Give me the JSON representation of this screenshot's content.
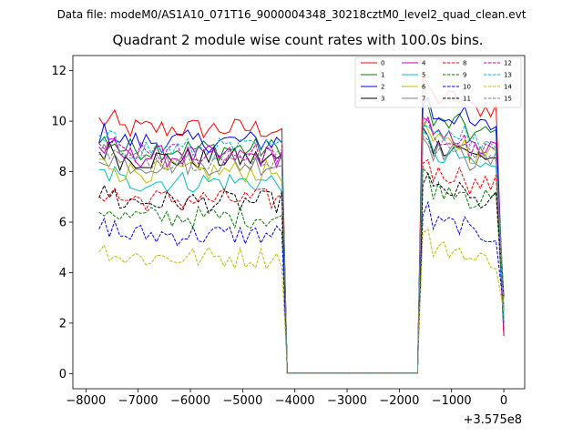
{
  "chart_data": {
    "type": "line",
    "suptitle": "Data file: modeM0/AS1A10_071T16_9000004348_30218cztM0_level2_quad_clean.evt",
    "title": "Quadrant 2 module wise count rates with 100.0s bins.",
    "offset_label": "+3.575e8",
    "xlim": [
      -8250,
      400
    ],
    "ylim": [
      -0.6,
      12.6
    ],
    "xticks": [
      -8000,
      -7000,
      -6000,
      -5000,
      -4000,
      -3000,
      -2000,
      -1000,
      0
    ],
    "xtick_labels": [
      "−8000",
      "−7000",
      "−6000",
      "−5000",
      "−4000",
      "−3000",
      "−2000",
      "−1000",
      "0"
    ],
    "yticks": [
      0,
      2,
      4,
      6,
      8,
      10,
      12
    ],
    "ytick_labels": [
      "0",
      "2",
      "4",
      "6",
      "8",
      "10",
      "12"
    ],
    "series": [
      {
        "name": "0",
        "color": "#ff0000",
        "dash": false,
        "seg1_level": 9.7,
        "seg2_level": 10.9
      },
      {
        "name": "1",
        "color": "#008000",
        "dash": false,
        "seg1_level": 8.9,
        "seg2_level": 9.9
      },
      {
        "name": "2",
        "color": "#0000ff",
        "dash": false,
        "seg1_level": 9.2,
        "seg2_level": 10.2
      },
      {
        "name": "3",
        "color": "#000000",
        "dash": false,
        "seg1_level": 8.5,
        "seg2_level": 9.0
      },
      {
        "name": "4",
        "color": "#bf00bf",
        "dash": false,
        "seg1_level": 8.6,
        "seg2_level": 9.3
      },
      {
        "name": "5",
        "color": "#00bfbf",
        "dash": false,
        "seg1_level": 7.6,
        "seg2_level": 8.6
      },
      {
        "name": "6",
        "color": "#bfbf00",
        "dash": false,
        "seg1_level": 8.0,
        "seg2_level": 9.1
      },
      {
        "name": "7",
        "color": "#808080",
        "dash": false,
        "seg1_level": 8.3,
        "seg2_level": 8.8
      },
      {
        "name": "8",
        "color": "#ff0000",
        "dash": true,
        "seg1_level": 6.9,
        "seg2_level": 7.9
      },
      {
        "name": "9",
        "color": "#008000",
        "dash": true,
        "seg1_level": 6.2,
        "seg2_level": 7.3
      },
      {
        "name": "10",
        "color": "#0000ff",
        "dash": true,
        "seg1_level": 5.5,
        "seg2_level": 5.9
      },
      {
        "name": "11",
        "color": "#000000",
        "dash": true,
        "seg1_level": 6.8,
        "seg2_level": 7.2
      },
      {
        "name": "12",
        "color": "#bf00bf",
        "dash": true,
        "seg1_level": 8.7,
        "seg2_level": 9.2
      },
      {
        "name": "13",
        "color": "#00bfbf",
        "dash": true,
        "seg1_level": 8.9,
        "seg2_level": 9.6
      },
      {
        "name": "14",
        "color": "#bfbf00",
        "dash": true,
        "seg1_level": 4.6,
        "seg2_level": 4.9
      },
      {
        "name": "15",
        "color": "#808080",
        "dash": true,
        "seg1_level": 8.5,
        "seg2_level": 9.0
      }
    ],
    "segments": {
      "seg1": {
        "start": -7750,
        "end": -4250,
        "drop_end": -4150
      },
      "gap": {
        "start": -4150,
        "end": -1650,
        "value": 0.02
      },
      "seg2": {
        "rise_start": -1650,
        "start": -1550,
        "end": -150,
        "drop_end": 0
      }
    }
  }
}
